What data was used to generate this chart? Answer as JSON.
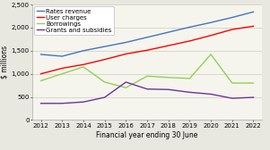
{
  "years": [
    2012,
    2013,
    2014,
    2015,
    2016,
    2017,
    2018,
    2019,
    2020,
    2021,
    2022
  ],
  "rates_revenue": [
    1420,
    1380,
    1500,
    1590,
    1680,
    1790,
    1900,
    2010,
    2110,
    2220,
    2340
  ],
  "user_charges": [
    1000,
    1120,
    1200,
    1310,
    1430,
    1510,
    1610,
    1710,
    1830,
    1960,
    2030
  ],
  "borrowings": [
    850,
    1000,
    1150,
    820,
    700,
    950,
    920,
    900,
    1420,
    800,
    800
  ],
  "grants_subsidies": [
    360,
    360,
    390,
    490,
    820,
    670,
    660,
    600,
    560,
    470,
    490
  ],
  "colors": {
    "rates_revenue": "#4472C4",
    "user_charges": "#FF0000",
    "borrowings": "#92D050",
    "grants_subsidies": "#7030A0"
  },
  "ylim": [
    0,
    2500
  ],
  "yticks": [
    0,
    500,
    1000,
    1500,
    2000,
    2500
  ],
  "ylabel": "$ millions",
  "xlabel": "Financial year ending 30 June",
  "legend_labels": [
    "Rates revenue",
    "User charges",
    "Borrowings",
    "Grants and subsidies"
  ],
  "background_color": "#e8e8e0",
  "plot_bg": "#f5f5ee",
  "axis_fontsize": 5.5,
  "tick_fontsize": 5.0,
  "legend_fontsize": 5.0
}
